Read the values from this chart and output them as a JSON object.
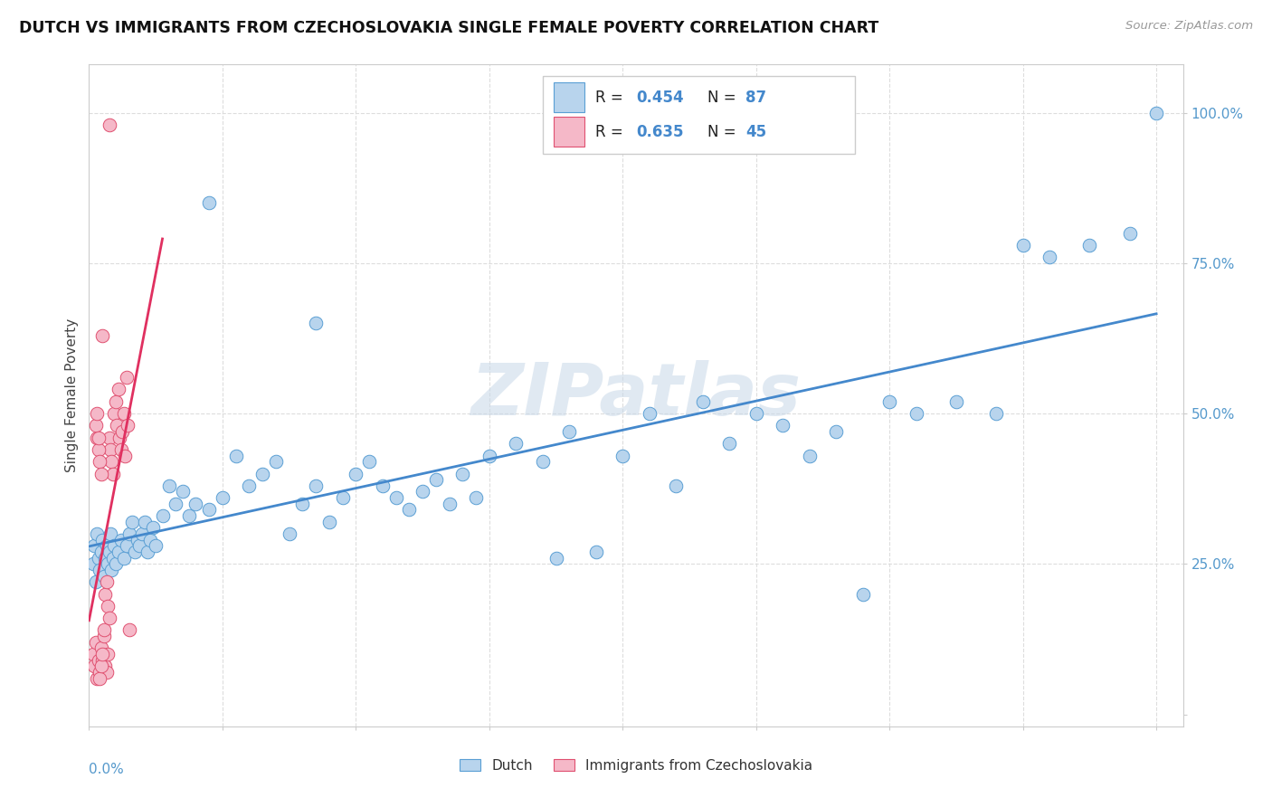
{
  "title": "DUTCH VS IMMIGRANTS FROM CZECHOSLOVAKIA SINGLE FEMALE POVERTY CORRELATION CHART",
  "source": "Source: ZipAtlas.com",
  "ylabel": "Single Female Poverty",
  "watermark": "ZIPatlas",
  "xlim": [
    0.0,
    0.82
  ],
  "ylim": [
    -0.02,
    1.08
  ],
  "blue_R": 0.454,
  "blue_N": 87,
  "pink_R": 0.635,
  "pink_N": 45,
  "blue_color": "#b8d4ed",
  "pink_color": "#f5b8c8",
  "blue_edge_color": "#5a9fd4",
  "pink_edge_color": "#e05070",
  "blue_line_color": "#4488cc",
  "pink_line_color": "#e03060",
  "background_color": "#ffffff",
  "grid_color": "#dddddd",
  "ytick_color": "#5599cc",
  "xtick_color": "#5599cc",
  "dutch_x": [
    0.003,
    0.004,
    0.005,
    0.006,
    0.007,
    0.008,
    0.009,
    0.01,
    0.011,
    0.012,
    0.013,
    0.014,
    0.015,
    0.016,
    0.017,
    0.018,
    0.019,
    0.02,
    0.022,
    0.024,
    0.026,
    0.028,
    0.03,
    0.032,
    0.034,
    0.036,
    0.038,
    0.04,
    0.042,
    0.044,
    0.046,
    0.048,
    0.05,
    0.055,
    0.06,
    0.065,
    0.07,
    0.075,
    0.08,
    0.09,
    0.1,
    0.11,
    0.12,
    0.13,
    0.14,
    0.15,
    0.16,
    0.17,
    0.18,
    0.19,
    0.2,
    0.21,
    0.22,
    0.23,
    0.24,
    0.25,
    0.26,
    0.27,
    0.28,
    0.29,
    0.3,
    0.32,
    0.34,
    0.36,
    0.38,
    0.4,
    0.42,
    0.44,
    0.46,
    0.48,
    0.5,
    0.52,
    0.54,
    0.56,
    0.58,
    0.6,
    0.62,
    0.65,
    0.68,
    0.7,
    0.72,
    0.75,
    0.78,
    0.8,
    0.35,
    0.17,
    0.09
  ],
  "dutch_y": [
    0.25,
    0.28,
    0.22,
    0.3,
    0.26,
    0.24,
    0.27,
    0.29,
    0.23,
    0.26,
    0.28,
    0.25,
    0.27,
    0.3,
    0.24,
    0.26,
    0.28,
    0.25,
    0.27,
    0.29,
    0.26,
    0.28,
    0.3,
    0.32,
    0.27,
    0.29,
    0.28,
    0.3,
    0.32,
    0.27,
    0.29,
    0.31,
    0.28,
    0.33,
    0.38,
    0.35,
    0.37,
    0.33,
    0.35,
    0.34,
    0.36,
    0.43,
    0.38,
    0.4,
    0.42,
    0.3,
    0.35,
    0.38,
    0.32,
    0.36,
    0.4,
    0.42,
    0.38,
    0.36,
    0.34,
    0.37,
    0.39,
    0.35,
    0.4,
    0.36,
    0.43,
    0.45,
    0.42,
    0.47,
    0.27,
    0.43,
    0.5,
    0.38,
    0.52,
    0.45,
    0.5,
    0.48,
    0.43,
    0.47,
    0.2,
    0.52,
    0.5,
    0.52,
    0.5,
    0.78,
    0.76,
    0.78,
    0.8,
    1.0,
    0.26,
    0.65,
    0.85
  ],
  "czech_x": [
    0.003,
    0.004,
    0.005,
    0.006,
    0.007,
    0.008,
    0.009,
    0.01,
    0.011,
    0.012,
    0.013,
    0.014,
    0.015,
    0.015,
    0.016,
    0.017,
    0.018,
    0.019,
    0.02,
    0.021,
    0.022,
    0.023,
    0.024,
    0.025,
    0.026,
    0.027,
    0.028,
    0.029,
    0.03,
    0.012,
    0.013,
    0.014,
    0.008,
    0.009,
    0.01,
    0.006,
    0.007,
    0.008,
    0.009,
    0.005,
    0.006,
    0.007,
    0.01,
    0.011,
    0.015
  ],
  "czech_y": [
    0.1,
    0.08,
    0.12,
    0.06,
    0.09,
    0.07,
    0.11,
    0.09,
    0.13,
    0.08,
    0.07,
    0.1,
    0.98,
    0.46,
    0.44,
    0.42,
    0.4,
    0.5,
    0.52,
    0.48,
    0.54,
    0.46,
    0.44,
    0.47,
    0.5,
    0.43,
    0.56,
    0.48,
    0.14,
    0.2,
    0.22,
    0.18,
    0.06,
    0.08,
    0.1,
    0.46,
    0.44,
    0.42,
    0.4,
    0.48,
    0.5,
    0.46,
    0.63,
    0.14,
    0.16
  ]
}
